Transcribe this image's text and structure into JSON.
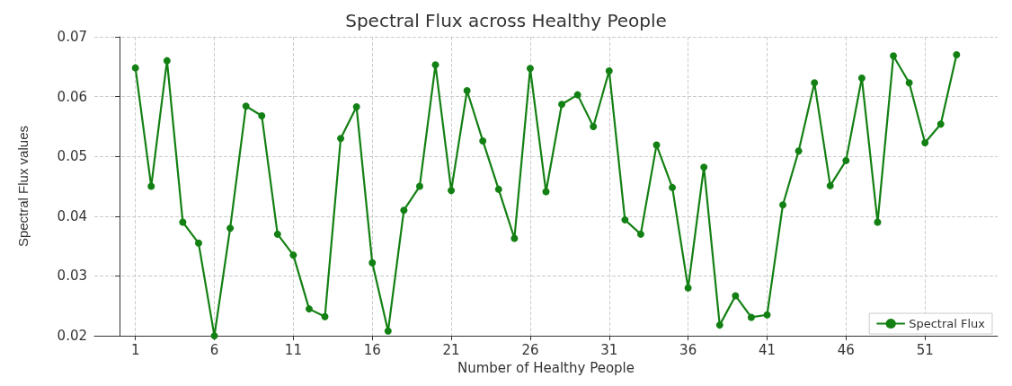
{
  "chart_data": {
    "type": "line",
    "title": "Spectral Flux across Healthy People",
    "xlabel": "Number of Healthy People",
    "ylabel": "Spectral Flux values",
    "x": [
      1,
      2,
      3,
      4,
      5,
      6,
      7,
      8,
      9,
      10,
      11,
      12,
      13,
      14,
      15,
      16,
      17,
      18,
      19,
      20,
      21,
      22,
      23,
      24,
      25,
      26,
      27,
      28,
      29,
      30,
      31,
      32,
      33,
      34,
      35,
      36,
      37,
      38,
      39,
      40,
      41,
      42,
      43,
      44,
      45,
      46,
      47,
      48,
      49,
      50,
      51,
      52,
      53
    ],
    "series": [
      {
        "name": "Spectral Flux",
        "color": "#138013",
        "values": [
          0.0648,
          0.045,
          0.066,
          0.039,
          0.0355,
          0.02,
          0.038,
          0.0584,
          0.0568,
          0.037,
          0.0335,
          0.0245,
          0.0232,
          0.053,
          0.0583,
          0.0322,
          0.0208,
          0.041,
          0.045,
          0.0653,
          0.0443,
          0.061,
          0.0526,
          0.0445,
          0.0363,
          0.0647,
          0.0441,
          0.0587,
          0.0603,
          0.055,
          0.0643,
          0.0394,
          0.037,
          0.0519,
          0.0448,
          0.028,
          0.0482,
          0.0218,
          0.0267,
          0.0231,
          0.0235,
          0.0419,
          0.0509,
          0.0623,
          0.0451,
          0.0493,
          0.0631,
          0.039,
          0.0668,
          0.0623,
          0.0523,
          0.0554,
          0.067
        ]
      }
    ],
    "xlim": [
      -1.6,
      55.6
    ],
    "xticks": [
      1,
      6,
      11,
      16,
      21,
      26,
      31,
      36,
      41,
      46,
      51
    ],
    "ylim": [
      0.02,
      0.07
    ],
    "yticks": [
      0.02,
      0.03,
      0.04,
      0.05,
      0.06,
      0.07
    ],
    "grid": true,
    "legend": "bottom right",
    "marker": "circle",
    "line_style": "solid"
  }
}
